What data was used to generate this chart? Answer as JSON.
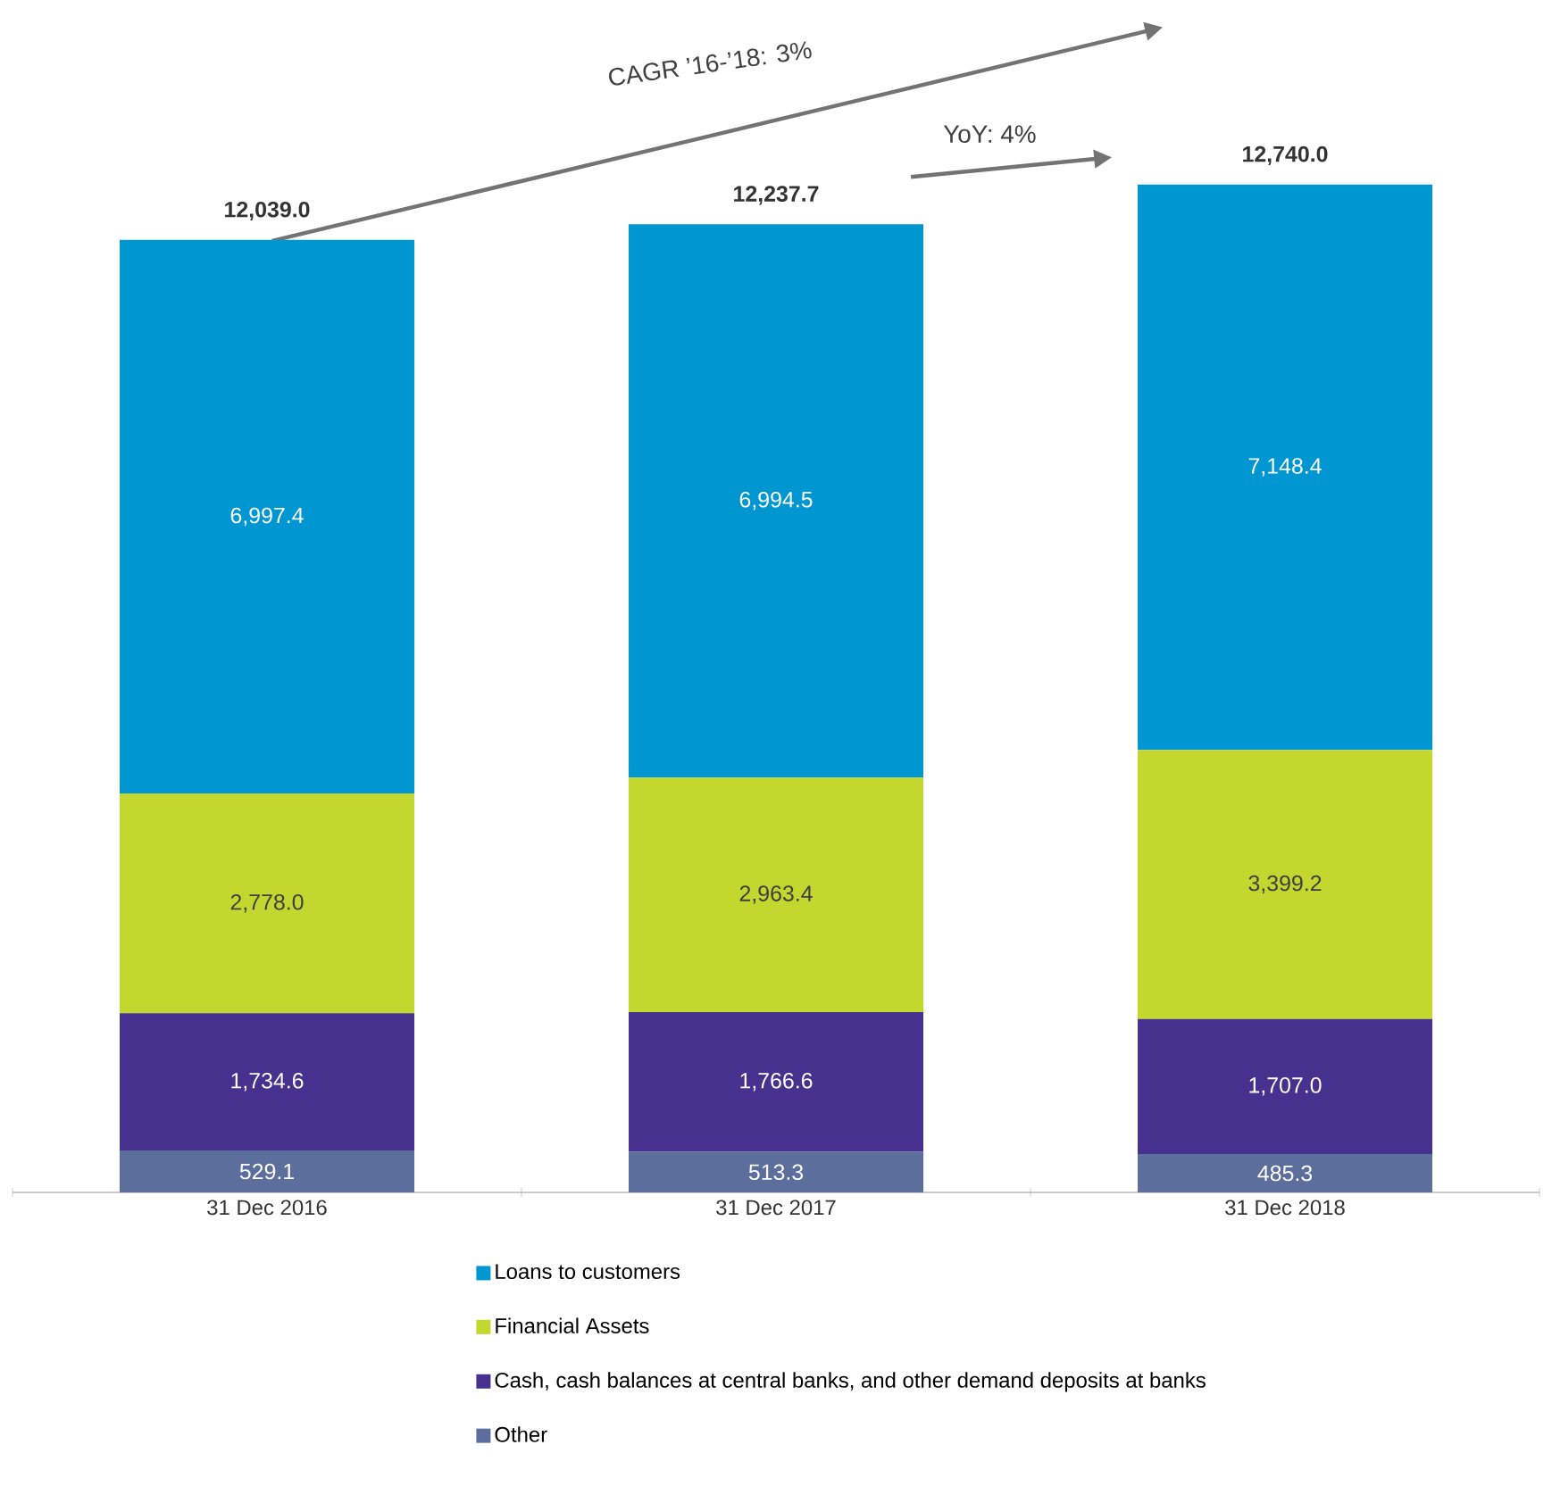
{
  "chart_data": {
    "type": "bar",
    "stacked": true,
    "legend": "bottom",
    "data_labels": true,
    "categories": [
      "31 Dec 2016",
      "31 Dec 2017",
      "31 Dec 2018"
    ],
    "series": [
      {
        "name": "Other",
        "color": "#5b6e9c",
        "values": [
          529.1,
          513.3,
          485.3
        ],
        "value_labels": [
          "529.1",
          "513.3",
          "485.3"
        ]
      },
      {
        "name": "Cash, cash balances at central banks, and other demand deposits at banks",
        "color": "#48308e",
        "values": [
          1734.6,
          1766.6,
          1707.0
        ],
        "value_labels": [
          "1,734.6",
          "1,766.6",
          "1,707.0"
        ]
      },
      {
        "name": "Financial Assets",
        "color": "#c3d72f",
        "values": [
          2778.0,
          2963.4,
          3399.2
        ],
        "value_labels": [
          "2,778.0",
          "2,963.4",
          "3,399.2"
        ]
      },
      {
        "name": "Loans to customers",
        "color": "#0096d1",
        "values": [
          6997.4,
          6994.5,
          7148.4
        ],
        "value_labels": [
          "6,997.4",
          "6,994.5",
          "7,148.4"
        ]
      }
    ],
    "totals": [
      "12,039.0",
      "12,237.7",
      "12,740.0"
    ],
    "annotations": [
      "CAGR ’16-’18:  3%",
      "YoY:  4%"
    ]
  }
}
